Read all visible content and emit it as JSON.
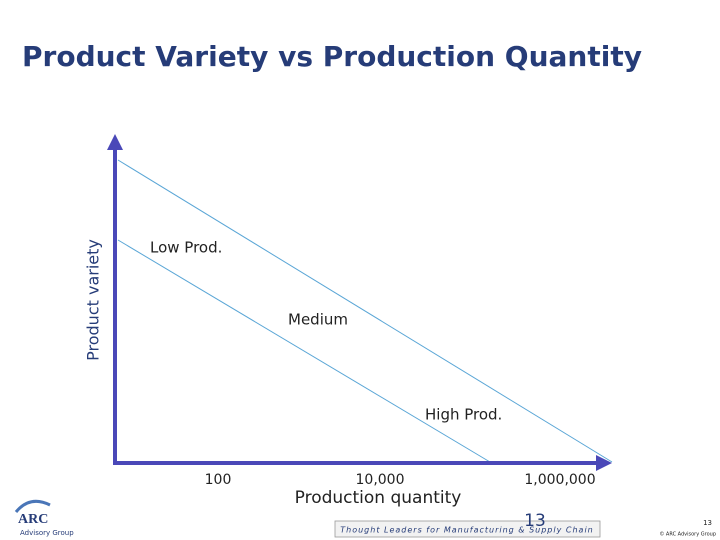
{
  "header": {
    "title": "Product Variety vs Production Quantity"
  },
  "diagram": {
    "y_axis_label": "Product variety",
    "x_axis_label": "Production quantity",
    "x_tick_labels": [
      "100",
      "10,000",
      "1,000,000"
    ],
    "regions": [
      "Low Prod.",
      "Medium",
      "High Prod."
    ]
  },
  "footer": {
    "logo": "ARC",
    "logo_sub": "Advisory Group",
    "banner": "Thought Leaders for Manufacturing & Supply Chain",
    "slide_number": "13",
    "corner_number": "13",
    "copyright": "© ARC Advisory Group"
  }
}
